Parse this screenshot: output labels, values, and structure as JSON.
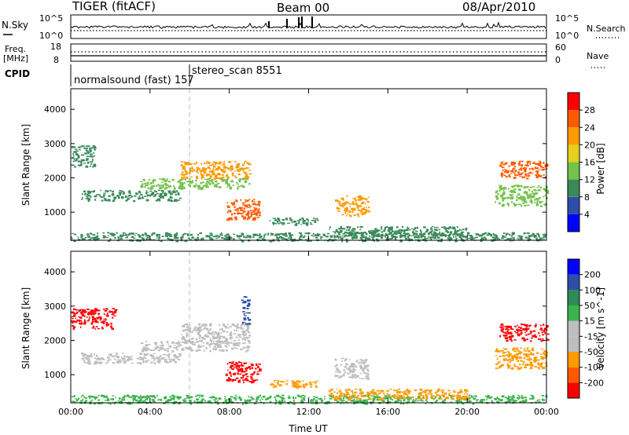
{
  "header": {
    "radar": "TIGER (fitACF)",
    "beam": "Beam 00",
    "date": "08/Apr/2010"
  },
  "panels": {
    "nsky": {
      "label": "N.Sky",
      "ytick_top": "10^5",
      "ytick_bottom": "10^0",
      "right_top": "10^5",
      "right_bottom": "10^0",
      "right_label": "N.Search"
    },
    "freq": {
      "label_line1": "Freq.",
      "label_line2": "[MHz]",
      "ytick_top": "18",
      "ytick_bottom": "8",
      "right_top": "60",
      "right_bottom": "0",
      "right_label": "Nave"
    },
    "cpid": {
      "label": "CPID",
      "segments": [
        {
          "text": "normalsound (fast) 157",
          "start": 0.0,
          "end": 6.0
        },
        {
          "text": "stereo_scan 8551",
          "start": 6.0,
          "end": 24.0
        }
      ]
    }
  },
  "colors": {
    "power_scale": [
      "#0000ff",
      "#2e4fa8",
      "#3a8a5a",
      "#73c24a",
      "#e6d01e",
      "#ff9a00",
      "#ff5a00",
      "#ff0000"
    ],
    "velocity_scale": [
      "#ff0000",
      "#ff5a00",
      "#ff9a00",
      "#bebebe",
      "#bebebe",
      "#3cb44b",
      "#2e8b57",
      "#2e4fa8",
      "#0000ff"
    ]
  },
  "chart_data": [
    {
      "type": "heatmap",
      "name": "power",
      "xlabel": "",
      "ylabel": "Slant Range [km]",
      "xlim": [
        0,
        24
      ],
      "ylim": [
        180,
        4600
      ],
      "yticks": [
        "1000",
        "2000",
        "3000",
        "4000"
      ],
      "ytick_values": [
        1000,
        2000,
        3000,
        4000
      ],
      "colorbar": {
        "label": "Power [dB]",
        "ticks": [
          "4",
          "8",
          "12",
          "16",
          "20",
          "24",
          "28"
        ],
        "tick_values": [
          4,
          8,
          12,
          16,
          20,
          24,
          28
        ],
        "range": [
          0,
          32
        ]
      },
      "regions": [
        {
          "t0": 0.0,
          "t1": 24.0,
          "r0": 180,
          "r1": 420,
          "value": 8
        },
        {
          "t0": 0.0,
          "t1": 1.2,
          "r0": 2350,
          "r1": 2950,
          "value": 9
        },
        {
          "t0": 0.5,
          "t1": 5.5,
          "r0": 1350,
          "r1": 1650,
          "value": 10
        },
        {
          "t0": 3.5,
          "t1": 9.0,
          "r0": 1700,
          "r1": 2000,
          "value": 14
        },
        {
          "t0": 5.5,
          "t1": 9.0,
          "r0": 2000,
          "r1": 2500,
          "value": 21
        },
        {
          "t0": 7.8,
          "t1": 9.5,
          "r0": 800,
          "r1": 1400,
          "value": 27
        },
        {
          "t0": 10.0,
          "t1": 12.5,
          "r0": 650,
          "r1": 850,
          "value": 9
        },
        {
          "t0": 13.3,
          "t1": 15.0,
          "r0": 900,
          "r1": 1500,
          "value": 22
        },
        {
          "t0": 13.0,
          "t1": 20.0,
          "r0": 300,
          "r1": 600,
          "value": 11
        },
        {
          "t0": 21.4,
          "t1": 24.0,
          "r0": 1200,
          "r1": 1800,
          "value": 15
        },
        {
          "t0": 21.6,
          "t1": 24.0,
          "r0": 2000,
          "r1": 2500,
          "value": 24
        }
      ]
    },
    {
      "type": "heatmap",
      "name": "velocity",
      "xlabel": "Time UT",
      "ylabel": "Slant Range [km]",
      "xlim": [
        0,
        24
      ],
      "ylim": [
        180,
        4600
      ],
      "xticks": [
        "00:00",
        "04:00",
        "08:00",
        "12:00",
        "16:00",
        "20:00",
        "00:00"
      ],
      "xtick_values": [
        0,
        4,
        8,
        12,
        16,
        20,
        24
      ],
      "yticks": [
        "1000",
        "2000",
        "3000",
        "4000"
      ],
      "ytick_values": [
        1000,
        2000,
        3000,
        4000
      ],
      "colorbar": {
        "label": "Velocity [m s^-1]",
        "ticks": [
          "-200",
          "-100",
          "-50",
          "-15",
          "15",
          "50",
          "100",
          "200"
        ],
        "tick_values": [
          -200,
          -100,
          -50,
          -15,
          15,
          50,
          100,
          200
        ]
      },
      "regions": [
        {
          "t0": 0.0,
          "t1": 24.0,
          "r0": 180,
          "r1": 420,
          "value": 30
        },
        {
          "t0": 0.0,
          "t1": 2.2,
          "r0": 2350,
          "r1": 2950,
          "value": -220
        },
        {
          "t0": 0.5,
          "t1": 5.5,
          "r0": 1350,
          "r1": 1650,
          "value": 0
        },
        {
          "t0": 3.5,
          "t1": 9.0,
          "r0": 1700,
          "r1": 2000,
          "value": 0
        },
        {
          "t0": 5.5,
          "t1": 9.0,
          "r0": 2000,
          "r1": 2500,
          "value": 0
        },
        {
          "t0": 7.8,
          "t1": 9.5,
          "r0": 800,
          "r1": 1400,
          "value": -220
        },
        {
          "t0": 8.6,
          "t1": 9.0,
          "r0": 2500,
          "r1": 3300,
          "value": 150
        },
        {
          "t0": 10.0,
          "t1": 12.5,
          "r0": 650,
          "r1": 850,
          "value": -90
        },
        {
          "t0": 13.3,
          "t1": 15.0,
          "r0": 900,
          "r1": 1500,
          "value": 0
        },
        {
          "t0": 13.0,
          "t1": 20.0,
          "r0": 300,
          "r1": 600,
          "value": -60
        },
        {
          "t0": 21.4,
          "t1": 24.0,
          "r0": 1200,
          "r1": 1800,
          "value": -80
        },
        {
          "t0": 21.6,
          "t1": 24.0,
          "r0": 2000,
          "r1": 2500,
          "value": -220
        }
      ]
    }
  ]
}
